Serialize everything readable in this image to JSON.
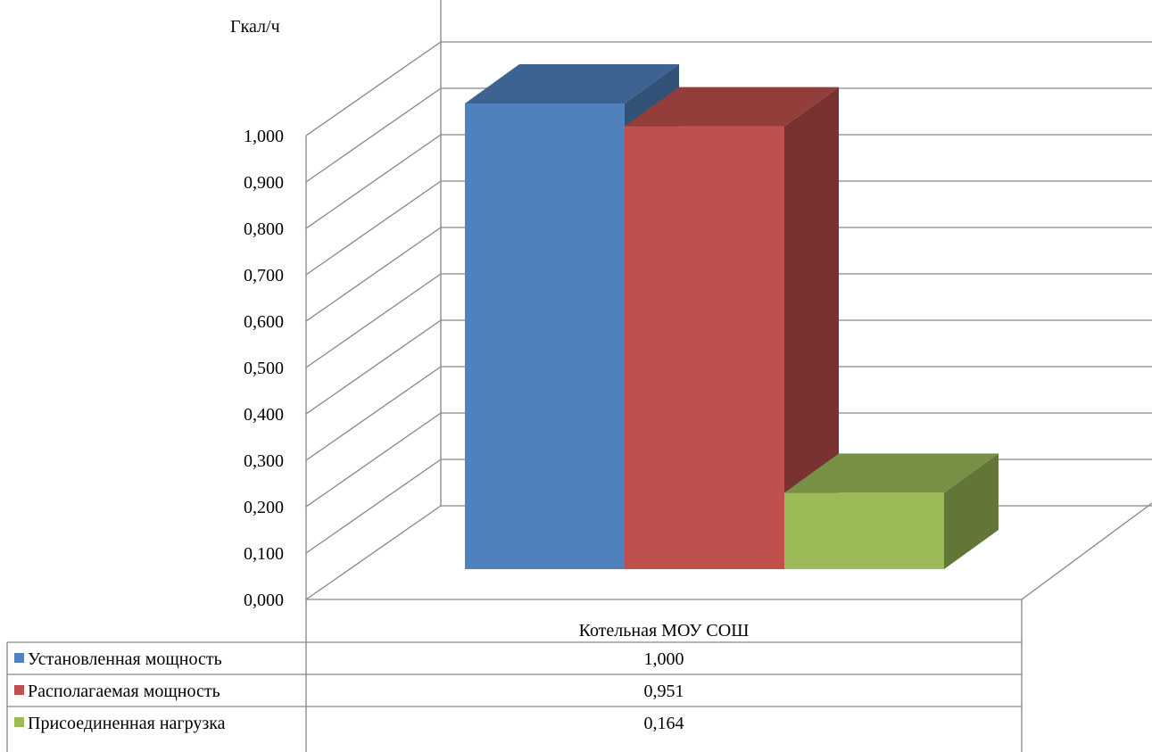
{
  "chart_data": {
    "type": "bar",
    "style": "3d-clustered-column-with-data-table",
    "unit_label": "Гкал/ч",
    "categories": [
      "Котельная МОУ СОШ"
    ],
    "series": [
      {
        "name": "Установленная мощность",
        "values": [
          1.0
        ],
        "display_values": [
          "1,000"
        ],
        "color": "#4F81BD"
      },
      {
        "name": "Располагаемая мощность",
        "values": [
          0.951
        ],
        "display_values": [
          "0,951"
        ],
        "color": "#C0504D"
      },
      {
        "name": "Присоединенная нагрузка",
        "values": [
          0.164
        ],
        "display_values": [
          "0,164"
        ],
        "color": "#9BBB59"
      }
    ],
    "y_ticks": [
      "0,000",
      "0,100",
      "0,200",
      "0,300",
      "0,400",
      "0,500",
      "0,600",
      "0,700",
      "0,800",
      "0,900",
      "1,000"
    ],
    "ylim": [
      0,
      1.1
    ],
    "grid": true,
    "legend": "data-table-below"
  }
}
